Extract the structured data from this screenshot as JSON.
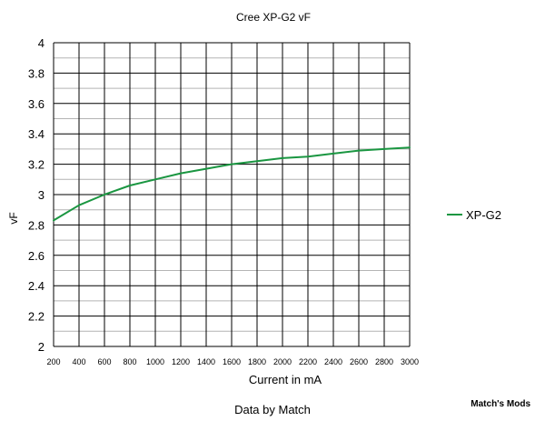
{
  "chart_data": {
    "type": "line",
    "title": "Cree XP-G2 vF",
    "xlabel": "Current in mA",
    "ylabel": "vF",
    "subtitle": "Data by Match",
    "watermark": "Match's Mods",
    "xlim": [
      200,
      3000
    ],
    "ylim": [
      2,
      4
    ],
    "x_ticks": [
      200,
      400,
      600,
      800,
      1000,
      1200,
      1400,
      1600,
      1800,
      2000,
      2200,
      2400,
      2600,
      2800,
      3000
    ],
    "y_ticks": [
      "2",
      "2.2",
      "2.4",
      "2.6",
      "2.8",
      "3",
      "3.2",
      "3.4",
      "3.6",
      "3.8",
      "4"
    ],
    "y_tick_values": [
      2,
      2.2,
      2.4,
      2.6,
      2.8,
      3.0,
      3.2,
      3.4,
      3.6,
      3.8,
      4.0
    ],
    "grid": true,
    "legend_position": "right",
    "series": [
      {
        "name": "XP-G2",
        "color": "#1a9641",
        "x": [
          200,
          400,
          600,
          800,
          1000,
          1200,
          1400,
          1600,
          1800,
          2000,
          2200,
          2400,
          2600,
          2800,
          3000
        ],
        "y": [
          2.83,
          2.93,
          3.0,
          3.06,
          3.1,
          3.14,
          3.17,
          3.2,
          3.22,
          3.24,
          3.25,
          3.27,
          3.29,
          3.3,
          3.31
        ]
      }
    ]
  }
}
